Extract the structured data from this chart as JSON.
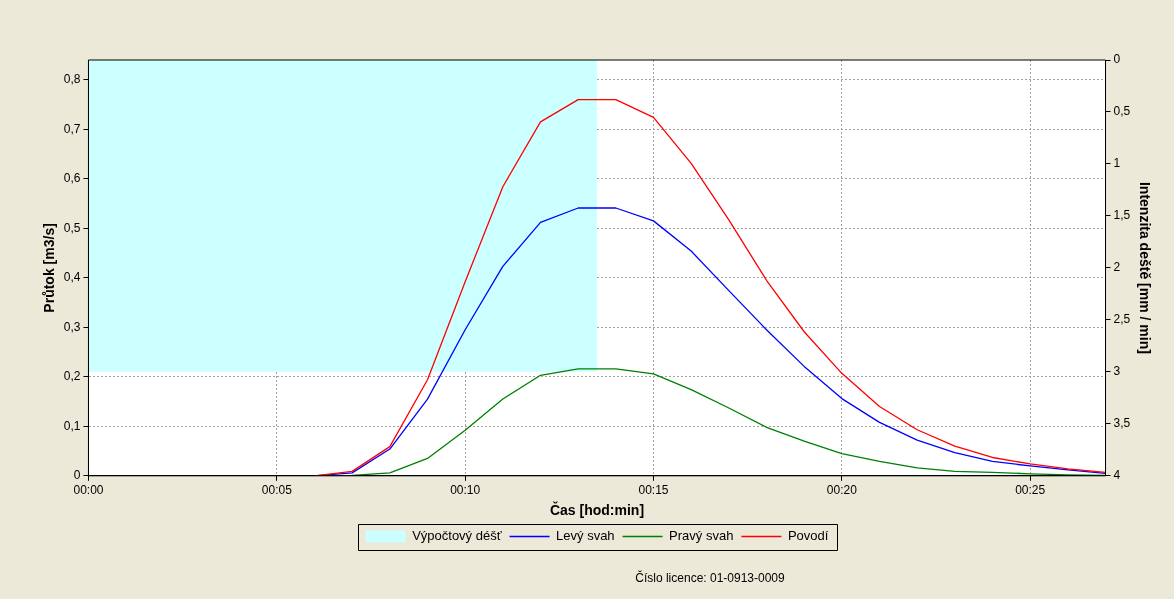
{
  "chart_data": {
    "type": "line",
    "xlabel": "Čas [hod:min]",
    "ylabel": "Průtok [m3/s]",
    "y2label": "Intenzita deště [mm / min]",
    "x": [
      6,
      7,
      8,
      9,
      10,
      11,
      12,
      13,
      14,
      15,
      16,
      17,
      18,
      19,
      20,
      21,
      22,
      23,
      24,
      25,
      26,
      27
    ],
    "series": [
      {
        "name": "Výpočtový déšť",
        "type": "area",
        "axis": "y2",
        "color": "#ccffff",
        "x": [
          0,
          13.5
        ],
        "values": [
          3,
          3
        ]
      },
      {
        "name": "Levý svah",
        "color": "#0000ff",
        "values": [
          0,
          0.006,
          0.054,
          0.155,
          0.295,
          0.423,
          0.512,
          0.541,
          0.541,
          0.515,
          0.454,
          0.374,
          0.295,
          0.221,
          0.156,
          0.108,
          0.072,
          0.047,
          0.029,
          0.02,
          0.012,
          0.005
        ]
      },
      {
        "name": "Pravý svah",
        "color": "#008000",
        "values": [
          0,
          0.001,
          0.006,
          0.035,
          0.092,
          0.155,
          0.203,
          0.216,
          0.216,
          0.206,
          0.174,
          0.137,
          0.098,
          0.07,
          0.045,
          0.029,
          0.016,
          0.009,
          0.007,
          0.004,
          0.002,
          0.001
        ]
      },
      {
        "name": "Povodí",
        "color": "#ff0000",
        "values": [
          0,
          0.009,
          0.059,
          0.194,
          0.392,
          0.584,
          0.715,
          0.76,
          0.76,
          0.724,
          0.631,
          0.517,
          0.395,
          0.291,
          0.207,
          0.14,
          0.093,
          0.06,
          0.037,
          0.024,
          0.014,
          0.007
        ]
      }
    ],
    "xlim": [
      0,
      27
    ],
    "xticks": [
      {
        "value": 0,
        "label": "00:00"
      },
      {
        "value": 5,
        "label": "00:05"
      },
      {
        "value": 10,
        "label": "00:10"
      },
      {
        "value": 15,
        "label": "00:15"
      },
      {
        "value": 20,
        "label": "00:20"
      },
      {
        "value": 25,
        "label": "00:25"
      }
    ],
    "ylim": [
      0,
      0.84
    ],
    "yticks": [
      0,
      {
        "value": 0.1,
        "label": "0,1"
      },
      {
        "value": 0.2,
        "label": "0,2"
      },
      {
        "value": 0.3,
        "label": "0,3"
      },
      {
        "value": 0.4,
        "label": "0,4"
      },
      {
        "value": 0.5,
        "label": "0,5"
      },
      {
        "value": 0.6,
        "label": "0,6"
      },
      {
        "value": 0.7,
        "label": "0,7"
      },
      {
        "value": 0.8,
        "label": "0,8"
      }
    ],
    "y2lim": [
      4,
      0
    ],
    "y2ticks": [
      0,
      {
        "value": 0.5,
        "label": "0,5"
      },
      1,
      {
        "value": 1.5,
        "label": "1,5"
      },
      2,
      {
        "value": 2.5,
        "label": "2,5"
      },
      3,
      {
        "value": 3.5,
        "label": "3,5"
      },
      4
    ],
    "grid": true,
    "legend": "bottom",
    "line_style": "solid",
    "annotations": [
      "Číslo licence: 01-0913-0009"
    ]
  }
}
